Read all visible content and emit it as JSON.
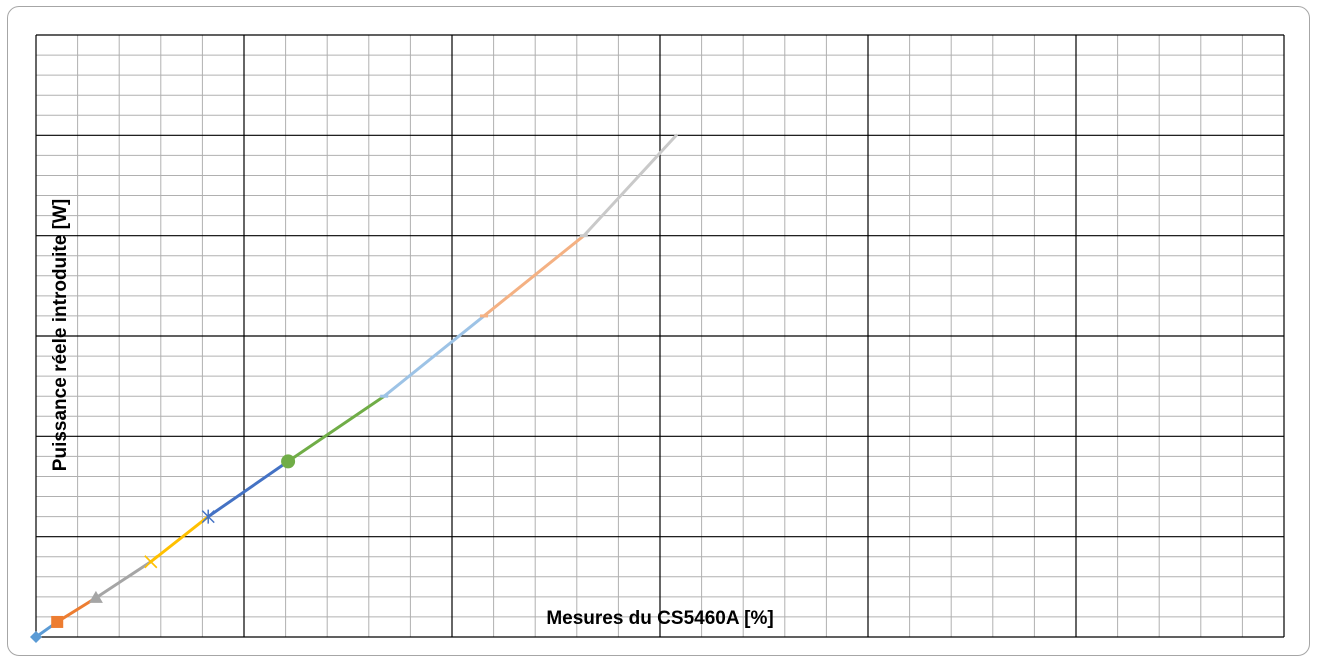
{
  "chart_data": {
    "type": "line",
    "xlabel": "Mesures du CS5460A [%]",
    "ylabel": "Puissance réele introduite [W]",
    "xlim": [
      0,
      100
    ],
    "ylim": [
      0,
      60
    ],
    "grid": true,
    "series": [
      {
        "color": "#5b9bd5",
        "marker": "diamond",
        "x": [
          0,
          1.7
        ],
        "y": [
          0,
          1.5
        ]
      },
      {
        "color": "#ed7d31",
        "marker": "square",
        "x": [
          1.7,
          4.8
        ],
        "y": [
          1.5,
          3.9
        ]
      },
      {
        "color": "#a5a5a5",
        "marker": "triangle",
        "x": [
          4.8,
          9.2
        ],
        "y": [
          3.9,
          7.5
        ]
      },
      {
        "color": "#ffc000",
        "marker": "x",
        "x": [
          9.2,
          13.8
        ],
        "y": [
          7.5,
          12.0
        ]
      },
      {
        "color": "#4472c4",
        "marker": "star",
        "x": [
          13.8,
          20.2
        ],
        "y": [
          12.0,
          17.5
        ]
      },
      {
        "color": "#70ad47",
        "marker": "circle",
        "x": [
          20.2,
          27.9
        ],
        "y": [
          17.5,
          24.0
        ]
      },
      {
        "color": "#9dc3e6",
        "marker": "dash",
        "x": [
          27.9,
          35.9
        ],
        "y": [
          24.0,
          32.0
        ]
      },
      {
        "color": "#f4b183",
        "marker": "dash",
        "x": [
          35.9,
          43.9
        ],
        "y": [
          32.0,
          40.0
        ]
      },
      {
        "color": "#c9c9c9",
        "marker": "dash",
        "x": [
          43.9,
          51.3
        ],
        "y": [
          40.0,
          50.0
        ]
      }
    ]
  }
}
